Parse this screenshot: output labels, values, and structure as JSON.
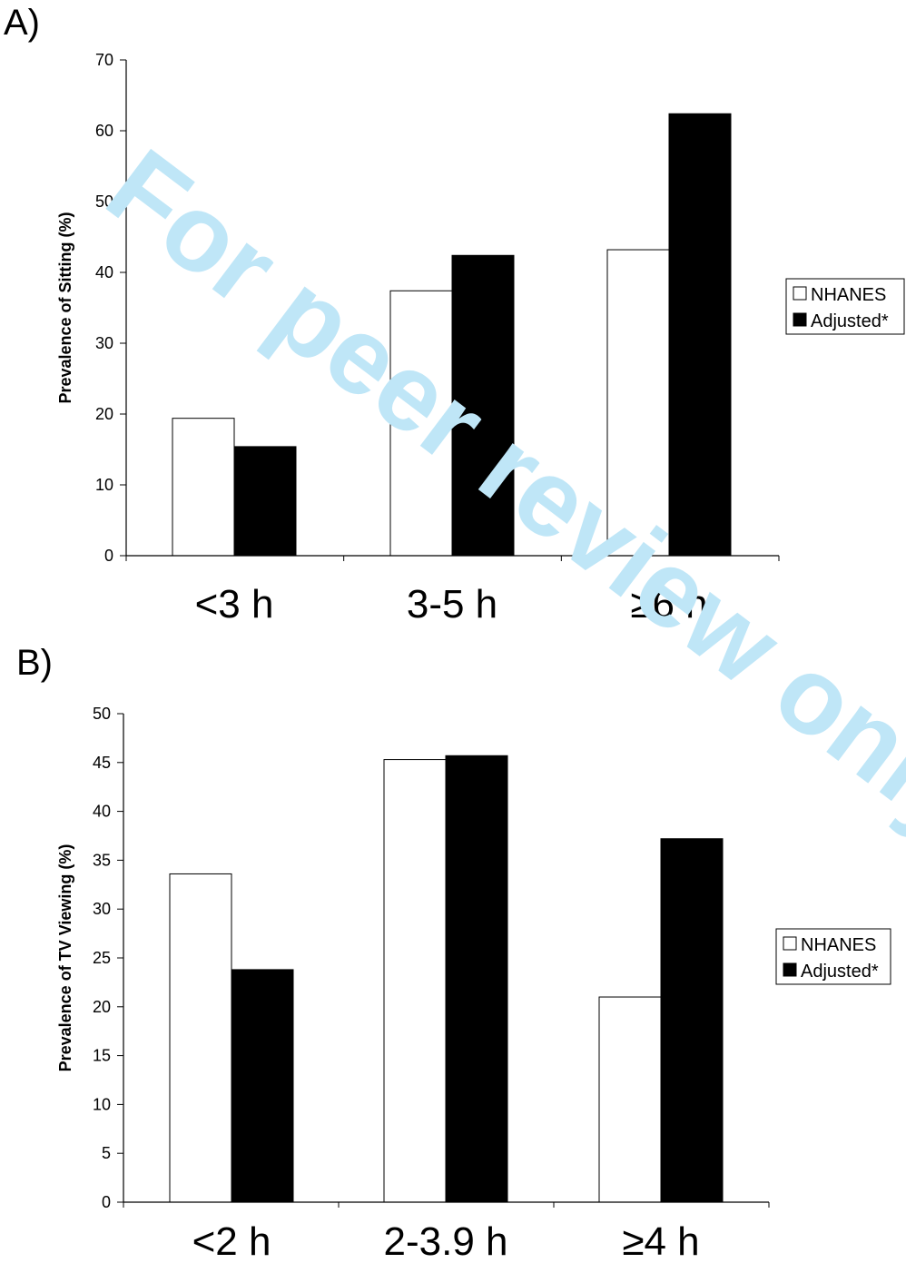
{
  "watermark": {
    "text": "For peer review only",
    "color": "#bfe6f7"
  },
  "colors": {
    "series_nhanes": "#ffffff",
    "series_adjusted": "#000000",
    "stroke": "#000000"
  },
  "chart_data": [
    {
      "id": "A",
      "type": "bar",
      "panel_label": "A)",
      "title": "",
      "xlabel": "",
      "ylabel": "Prevalence of Sitting (%)",
      "categories": [
        "<3 h",
        "3-5 h",
        "≥6 h"
      ],
      "ylim": [
        0,
        70
      ],
      "yticks": [
        0,
        10,
        20,
        30,
        40,
        50,
        60,
        70
      ],
      "grid": false,
      "legend_position": "right",
      "series": [
        {
          "name": "NHANES",
          "values": [
            19.4,
            37.4,
            43.2
          ]
        },
        {
          "name": "Adjusted*",
          "values": [
            15.4,
            42.4,
            62.4
          ]
        }
      ]
    },
    {
      "id": "B",
      "type": "bar",
      "panel_label": "B)",
      "title": "",
      "xlabel": "",
      "ylabel": "Prevalence of TV Viewing (%)",
      "categories": [
        "<2 h",
        "2-3.9 h",
        "≥4 h"
      ],
      "ylim": [
        0,
        50
      ],
      "yticks": [
        0,
        5,
        10,
        15,
        20,
        25,
        30,
        35,
        40,
        45,
        50
      ],
      "grid": false,
      "legend_position": "right",
      "series": [
        {
          "name": "NHANES",
          "values": [
            33.6,
            45.3,
            21.0
          ]
        },
        {
          "name": "Adjusted*",
          "values": [
            23.8,
            45.7,
            37.2
          ]
        }
      ]
    }
  ]
}
